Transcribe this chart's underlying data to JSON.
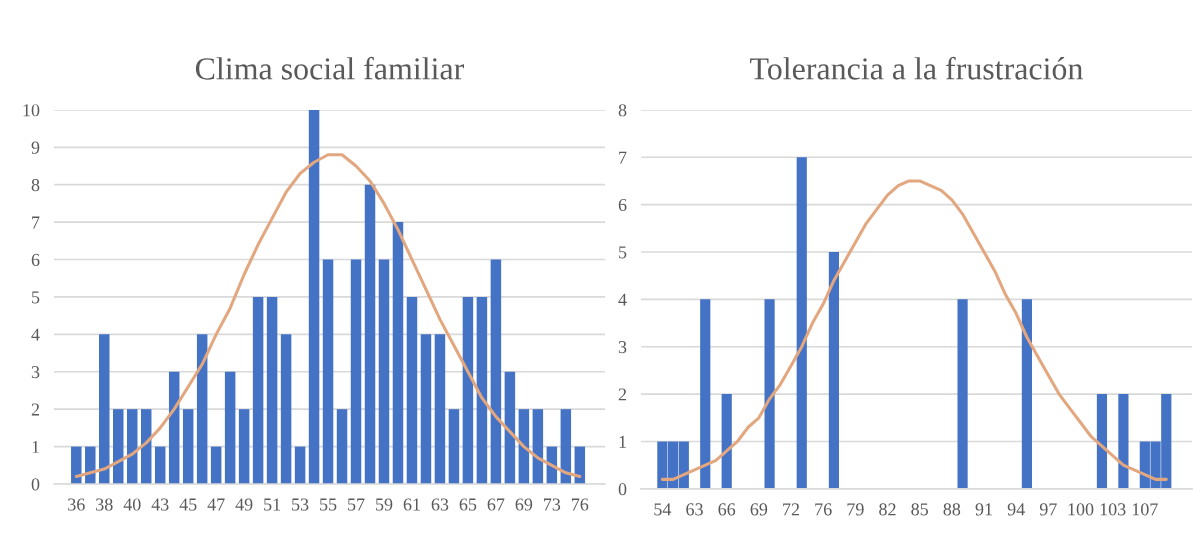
{
  "chart_data": [
    {
      "type": "bar",
      "title": "Clima social familiar",
      "categories": [
        "36",
        null,
        "38",
        null,
        "40",
        null,
        "43",
        null,
        "45",
        null,
        "47",
        null,
        "49",
        null,
        "51",
        null,
        "53",
        null,
        "55",
        null,
        "57",
        null,
        "59",
        null,
        "61",
        null,
        "63",
        null,
        "65",
        null,
        "67",
        null,
        "69",
        null,
        "73",
        null,
        "76"
      ],
      "series": [
        {
          "color": "#4472c4",
          "values": [
            1,
            1,
            4,
            2,
            2,
            2,
            1,
            3,
            2,
            4,
            1,
            3,
            2,
            5,
            5,
            4,
            1,
            10,
            6,
            2,
            6,
            8,
            6,
            7,
            5,
            4,
            4,
            2,
            5,
            5,
            6,
            3,
            2,
            2,
            1,
            2,
            1
          ]
        },
        {
          "type": "line",
          "color": "#e3a77f",
          "values": [
            0.2,
            0.3,
            0.4,
            0.6,
            0.8,
            1.1,
            1.5,
            2.0,
            2.6,
            3.2,
            4.0,
            4.7,
            5.6,
            6.4,
            7.1,
            7.8,
            8.3,
            8.6,
            8.8,
            8.8,
            8.5,
            8.1,
            7.5,
            6.8,
            6.0,
            5.2,
            4.4,
            3.7,
            3.0,
            2.3,
            1.8,
            1.4,
            1.0,
            0.7,
            0.5,
            0.3,
            0.2
          ]
        }
      ],
      "ylim": [
        0,
        10
      ],
      "yticks": [
        0,
        1,
        2,
        3,
        4,
        5,
        6,
        7,
        8,
        9,
        10
      ],
      "grid": "y",
      "legend": false
    },
    {
      "type": "bar",
      "title": "Tolerancia a la frustración",
      "categories": [
        "54",
        null,
        null,
        "63",
        null,
        null,
        "66",
        null,
        null,
        "69",
        null,
        null,
        "72",
        null,
        null,
        "76",
        null,
        null,
        "79",
        null,
        null,
        "82",
        null,
        null,
        "85",
        null,
        null,
        "88",
        null,
        null,
        "91",
        null,
        null,
        "94",
        null,
        null,
        "97",
        null,
        null,
        "100",
        null,
        null,
        "103",
        null,
        null,
        "107",
        null,
        null
      ],
      "series": [
        {
          "color": "#4472c4",
          "values": [
            1,
            1,
            1,
            null,
            4,
            null,
            2,
            null,
            null,
            null,
            4,
            null,
            null,
            7,
            null,
            null,
            5,
            null,
            null,
            null,
            null,
            null,
            null,
            null,
            null,
            null,
            null,
            null,
            4,
            null,
            null,
            null,
            null,
            null,
            4,
            null,
            null,
            null,
            null,
            null,
            null,
            2,
            null,
            2,
            null,
            1,
            1,
            2
          ]
        },
        {
          "type": "line",
          "color": "#e3a77f",
          "values": [
            0.2,
            0.2,
            0.3,
            0.4,
            0.5,
            0.6,
            0.8,
            1.0,
            1.3,
            1.5,
            1.9,
            2.2,
            2.6,
            3.0,
            3.5,
            3.9,
            4.4,
            4.8,
            5.2,
            5.6,
            5.9,
            6.2,
            6.4,
            6.5,
            6.5,
            6.4,
            6.3,
            6.1,
            5.8,
            5.4,
            5.0,
            4.6,
            4.1,
            3.7,
            3.2,
            2.8,
            2.4,
            2.0,
            1.7,
            1.4,
            1.1,
            0.9,
            0.7,
            0.5,
            0.4,
            0.3,
            0.2,
            0.2
          ]
        }
      ],
      "ylim": [
        0,
        8
      ],
      "yticks": [
        0,
        1,
        2,
        3,
        4,
        5,
        6,
        7,
        8
      ],
      "grid": "y",
      "legend": false
    }
  ]
}
